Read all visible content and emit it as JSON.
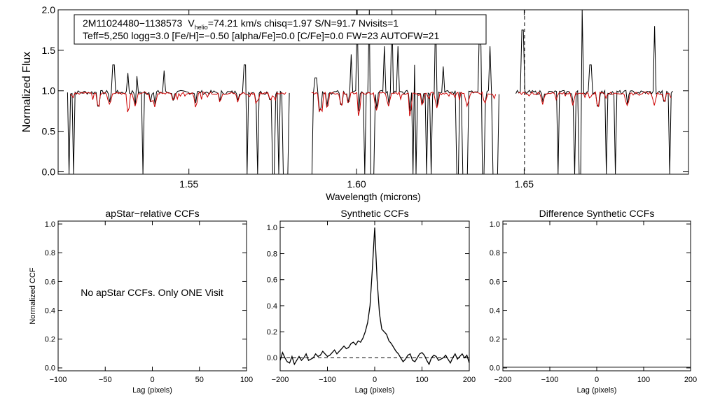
{
  "top": {
    "info_line1_id": "2M11024480−1138573",
    "info_line1_v": "V",
    "info_line1_v_sub": "helio",
    "info_line1_rest": "=74.21 km/s  chisq=1.97  S/N=91.7  Nvisits=1",
    "info_line2": "Teff=5,250 logg=3.0 [Fe/H]=−0.50 [alpha/Fe]=0.0 [C/Fe]=0.0 FW=23 AUTOFW=21"
  },
  "colors": {
    "observed": "#000000",
    "model": "#cc0000"
  },
  "panels": {
    "apstar_note": "No apStar CCFs.  Only ONE Visit"
  },
  "chart_data": [
    {
      "type": "line",
      "title": "",
      "xlabel": "Wavelength (microns)",
      "ylabel": "Normalized Flux",
      "xlim": [
        1.511,
        1.699
      ],
      "ylim": [
        -0.03,
        2.0
      ],
      "xticks": [
        1.55,
        1.6,
        1.65
      ],
      "xtick_labels": [
        "1.55",
        "1.60",
        "1.65"
      ],
      "yticks": [
        0.0,
        0.5,
        1.0,
        1.5,
        2.0
      ],
      "ytick_labels": [
        "0.0",
        "0.5",
        "1.0",
        "1.5",
        "2.0"
      ],
      "chips": [
        [
          1.5138,
          1.5801
        ],
        [
          1.5858,
          1.6426
        ],
        [
          1.6475,
          1.6947
        ]
      ],
      "vertical_dashed_lines": [
        1.6501
      ],
      "series": [
        {
          "role": "observed",
          "continuum": 0.98,
          "emission_spikes": [
            [
              1.5275,
              1.32
            ],
            [
              1.5318,
              1.22
            ],
            [
              1.5345,
              1.18
            ],
            [
              1.5425,
              1.25
            ],
            [
              1.5667,
              1.32
            ],
            [
              1.5878,
              1.16
            ],
            [
              1.5985,
              1.45
            ],
            [
              1.6003,
              2.0
            ],
            [
              1.6038,
              2.0
            ],
            [
              1.6082,
              1.55
            ],
            [
              1.6105,
              2.0
            ],
            [
              1.6124,
              1.55
            ],
            [
              1.6172,
              1.32
            ],
            [
              1.6178,
              2.0
            ],
            [
              1.6235,
              2.0
            ],
            [
              1.6258,
              1.3
            ],
            [
              1.6366,
              1.8
            ],
            [
              1.6373,
              1.55
            ],
            [
              1.6398,
              1.55
            ],
            [
              1.6418,
              2.0
            ],
            [
              1.6495,
              1.75
            ],
            [
              1.6673,
              2.0
            ],
            [
              1.6698,
              1.32
            ],
            [
              1.6888,
              1.8
            ]
          ],
          "dropouts": [
            1.5142,
            1.5156,
            1.5362,
            1.5674,
            1.5706,
            1.5752,
            1.5768,
            1.5781,
            1.5787,
            1.5793,
            1.586,
            1.5867,
            1.6026,
            1.6045,
            1.6049,
            1.6168,
            1.6178,
            1.6209,
            1.6222,
            1.6301,
            1.6316,
            1.6319,
            1.6328,
            1.6378,
            1.6409,
            1.6415,
            1.6421,
            1.66,
            1.6652,
            1.6666,
            1.6746,
            1.6771,
            1.6935
          ]
        },
        {
          "role": "model",
          "continuum": 0.97,
          "absorption_lines": [
            [
              1.523,
              0.78
            ],
            [
              1.5265,
              0.83
            ],
            [
              1.5318,
              0.72
            ],
            [
              1.534,
              0.8
            ],
            [
              1.5387,
              0.83
            ],
            [
              1.5398,
              0.8
            ],
            [
              1.5454,
              0.85
            ],
            [
              1.5521,
              0.82
            ],
            [
              1.5593,
              0.84
            ],
            [
              1.5646,
              0.85
            ],
            [
              1.5701,
              0.82
            ],
            [
              1.5743,
              0.86
            ],
            [
              1.589,
              0.72
            ],
            [
              1.5895,
              0.76
            ],
            [
              1.5912,
              0.78
            ],
            [
              1.5955,
              0.8
            ],
            [
              1.5976,
              0.82
            ],
            [
              1.6007,
              0.72
            ],
            [
              1.606,
              0.75
            ],
            [
              1.6095,
              0.8
            ],
            [
              1.616,
              0.72
            ],
            [
              1.6196,
              0.8
            ],
            [
              1.624,
              0.78
            ],
            [
              1.633,
              0.8
            ],
            [
              1.6384,
              0.84
            ],
            [
              1.6555,
              0.83
            ],
            [
              1.6645,
              0.82
            ],
            [
              1.672,
              0.78
            ],
            [
              1.6808,
              0.8
            ],
            [
              1.689,
              0.85
            ],
            [
              1.6918,
              0.84
            ]
          ]
        }
      ]
    },
    {
      "type": "line",
      "title": "apStar−relative CCFs",
      "xlabel": "Lag (pixels)",
      "ylabel": "Normalized CCF",
      "xlim": [
        -100,
        100
      ],
      "ylim": [
        -0.02,
        1.02
      ],
      "xticks": [
        -100,
        -50,
        0,
        50,
        100
      ],
      "xtick_labels": [
        "−100",
        "−50",
        "0",
        "50",
        "100"
      ],
      "yticks": [
        0.0,
        0.2,
        0.4,
        0.6,
        0.8,
        1.0
      ],
      "ytick_labels": [
        "0.0",
        "0.2",
        "0.4",
        "0.6",
        "0.8",
        "1.0"
      ],
      "series": []
    },
    {
      "type": "line",
      "title": "Synthetic CCFs",
      "xlabel": "Lag (pixels)",
      "ylabel": "",
      "xlim": [
        -200,
        200
      ],
      "ylim": [
        -0.1,
        1.05
      ],
      "xticks": [
        -200,
        -100,
        0,
        100,
        200
      ],
      "xtick_labels": [
        "−200",
        "−100",
        "0",
        "100",
        "200"
      ],
      "yticks": [
        0.0,
        0.2,
        0.4,
        0.6,
        0.8,
        1.0
      ],
      "ytick_labels": [
        "0.0",
        "0.2",
        "0.4",
        "0.6",
        "0.8",
        "1.0"
      ],
      "zero_line_dashed": true,
      "series": [
        {
          "role": "ccf",
          "x": [
            -200,
            -195,
            -190,
            -185,
            -180,
            -175,
            -170,
            -165,
            -160,
            -155,
            -150,
            -145,
            -140,
            -135,
            -130,
            -125,
            -120,
            -115,
            -110,
            -105,
            -100,
            -95,
            -90,
            -85,
            -80,
            -75,
            -70,
            -65,
            -60,
            -55,
            -50,
            -45,
            -40,
            -35,
            -30,
            -25,
            -20,
            -15,
            -10,
            -5,
            0,
            5,
            10,
            15,
            20,
            25,
            30,
            35,
            40,
            45,
            50,
            55,
            60,
            65,
            70,
            75,
            80,
            85,
            90,
            95,
            100,
            105,
            110,
            115,
            120,
            125,
            130,
            135,
            140,
            145,
            150,
            155,
            160,
            165,
            170,
            175,
            180,
            185,
            190,
            195,
            200
          ],
          "y": [
            -0.02,
            0.04,
            0.0,
            -0.03,
            -0.04,
            0.01,
            -0.05,
            -0.02,
            0.01,
            -0.02,
            0.0,
            0.03,
            -0.02,
            -0.01,
            0.0,
            0.03,
            0.01,
            0.02,
            0.05,
            0.03,
            0.01,
            0.02,
            0.04,
            0.06,
            0.03,
            0.05,
            0.07,
            0.09,
            0.07,
            0.08,
            0.11,
            0.12,
            0.1,
            0.13,
            0.12,
            0.15,
            0.2,
            0.27,
            0.4,
            0.68,
            1.0,
            0.6,
            0.34,
            0.22,
            0.2,
            0.18,
            0.13,
            0.11,
            0.08,
            0.05,
            0.03,
            0.0,
            -0.03,
            -0.01,
            0.02,
            0.03,
            -0.02,
            -0.03,
            0.0,
            0.03,
            0.04,
            0.02,
            -0.02,
            -0.05,
            0.0,
            0.02,
            0.01,
            -0.02,
            -0.01,
            0.0,
            0.02,
            -0.01,
            -0.04,
            0.0,
            0.03,
            -0.01,
            0.01,
            0.03,
            0.0,
            0.02,
            -0.04
          ]
        }
      ]
    },
    {
      "type": "line",
      "title": "Difference Synthetic CCFs",
      "xlabel": "Lag (pixels)",
      "ylabel": "",
      "xlim": [
        -200,
        200
      ],
      "ylim": [
        -0.02,
        1.02
      ],
      "xticks": [
        -200,
        -100,
        0,
        100,
        200
      ],
      "xtick_labels": [
        "−200",
        "−100",
        "0",
        "100",
        "200"
      ],
      "yticks": [
        0.0,
        0.2,
        0.4,
        0.6,
        0.8,
        1.0
      ],
      "ytick_labels": [
        "0.0",
        "0.2",
        "0.4",
        "0.6",
        "0.8",
        "1.0"
      ],
      "series": []
    }
  ]
}
